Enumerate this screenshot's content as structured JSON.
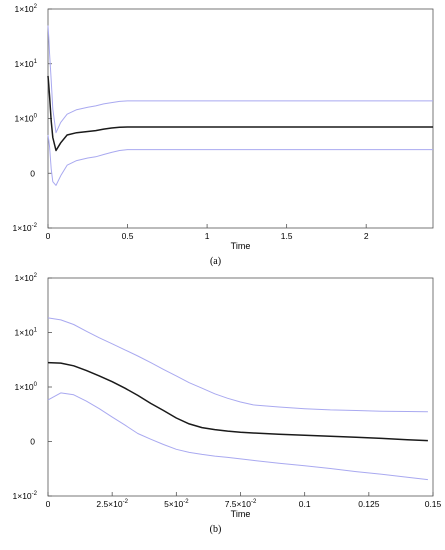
{
  "chart_data": [
    {
      "type": "line",
      "caption": "(a)",
      "xlabel": "Time",
      "ylabel": "",
      "x_ticks": [
        "0",
        "0.5",
        "1",
        "1.5",
        "2"
      ],
      "y_ticks": [
        {
          "base": "1×10",
          "exp": "2"
        },
        {
          "base": "1×10",
          "exp": "1"
        },
        {
          "base": "1×10",
          "exp": "0"
        },
        {
          "base": "0",
          "exp": ""
        },
        {
          "base": "1×10",
          "exp": "-2"
        }
      ],
      "y_scale": "log",
      "xlim": [
        0,
        2.42
      ],
      "grid": false,
      "series": [
        {
          "color": "#1a1a1a",
          "width": 1.5,
          "x": [
            0,
            0.005,
            0.01,
            0.02,
            0.03,
            0.05,
            0.08,
            0.12,
            0.18,
            0.25,
            0.3,
            0.35,
            0.4,
            0.45,
            0.5,
            0.6,
            1,
            1.5,
            2,
            2.42
          ],
          "y": [
            6,
            4,
            2.5,
            0.9,
            0.45,
            0.26,
            0.36,
            0.5,
            0.55,
            0.58,
            0.6,
            0.64,
            0.67,
            0.69,
            0.7,
            0.7,
            0.7,
            0.7,
            0.7,
            0.7
          ]
        },
        {
          "color": "#a9a9f0",
          "width": 1,
          "x": [
            0,
            0.005,
            0.01,
            0.02,
            0.03,
            0.05,
            0.08,
            0.12,
            0.18,
            0.25,
            0.3,
            0.35,
            0.4,
            0.45,
            0.5,
            0.6,
            1,
            1.5,
            2,
            2.42
          ],
          "y": [
            50,
            30,
            15,
            5,
            1.5,
            0.55,
            0.85,
            1.2,
            1.45,
            1.6,
            1.7,
            1.85,
            1.95,
            2.05,
            2.1,
            2.1,
            2.1,
            2.1,
            2.1,
            2.1
          ]
        },
        {
          "color": "#a9a9f0",
          "width": 1,
          "x": [
            0,
            0.005,
            0.01,
            0.02,
            0.03,
            0.05,
            0.08,
            0.12,
            0.18,
            0.25,
            0.3,
            0.35,
            0.4,
            0.45,
            0.5,
            0.6,
            1,
            1.5,
            2,
            2.42
          ],
          "y": [
            0.5,
            0.4,
            0.3,
            0.12,
            0.07,
            0.06,
            0.09,
            0.14,
            0.17,
            0.19,
            0.2,
            0.22,
            0.24,
            0.26,
            0.27,
            0.27,
            0.27,
            0.27,
            0.27,
            0.27
          ]
        }
      ]
    },
    {
      "type": "line",
      "caption": "(b)",
      "xlabel": "Time",
      "ylabel": "",
      "x_ticks": [
        {
          "base": "0",
          "exp": ""
        },
        {
          "base": "2.5×10",
          "exp": "-2"
        },
        {
          "base": "5×10",
          "exp": "-2"
        },
        {
          "base": "7.5×10",
          "exp": "-2"
        },
        {
          "base": "0.1",
          "exp": ""
        },
        {
          "base": "0.125",
          "exp": ""
        },
        {
          "base": "0.15",
          "exp": ""
        }
      ],
      "y_ticks": [
        {
          "base": "1×10",
          "exp": "2"
        },
        {
          "base": "1×10",
          "exp": "1"
        },
        {
          "base": "1×10",
          "exp": "0"
        },
        {
          "base": "0",
          "exp": ""
        },
        {
          "base": "1×10",
          "exp": "-2"
        }
      ],
      "y_scale": "log",
      "xlim": [
        0,
        0.15
      ],
      "grid": false,
      "series": [
        {
          "color": "#1a1a1a",
          "width": 1.5,
          "x": [
            0,
            0.005,
            0.01,
            0.015,
            0.02,
            0.025,
            0.03,
            0.035,
            0.04,
            0.045,
            0.05,
            0.055,
            0.06,
            0.065,
            0.07,
            0.075,
            0.08,
            0.09,
            0.1,
            0.11,
            0.12,
            0.13,
            0.14,
            0.148
          ],
          "y": [
            2.8,
            2.75,
            2.45,
            2.0,
            1.6,
            1.25,
            0.95,
            0.7,
            0.5,
            0.37,
            0.27,
            0.21,
            0.18,
            0.165,
            0.155,
            0.148,
            0.143,
            0.136,
            0.13,
            0.125,
            0.12,
            0.114,
            0.108,
            0.104
          ]
        },
        {
          "color": "#a9a9f0",
          "width": 1,
          "x": [
            0,
            0.005,
            0.01,
            0.015,
            0.02,
            0.025,
            0.03,
            0.035,
            0.04,
            0.045,
            0.05,
            0.055,
            0.06,
            0.065,
            0.07,
            0.075,
            0.08,
            0.09,
            0.1,
            0.11,
            0.12,
            0.13,
            0.14,
            0.148
          ],
          "y": [
            18.5,
            17,
            14,
            10.5,
            8,
            6.2,
            4.8,
            3.7,
            2.8,
            2.1,
            1.6,
            1.2,
            0.95,
            0.75,
            0.62,
            0.53,
            0.47,
            0.43,
            0.4,
            0.38,
            0.37,
            0.36,
            0.355,
            0.35
          ]
        },
        {
          "color": "#a9a9f0",
          "width": 1,
          "x": [
            0,
            0.005,
            0.01,
            0.015,
            0.02,
            0.025,
            0.03,
            0.035,
            0.04,
            0.045,
            0.05,
            0.055,
            0.06,
            0.065,
            0.07,
            0.075,
            0.08,
            0.09,
            0.1,
            0.11,
            0.12,
            0.13,
            0.14,
            0.148
          ],
          "y": [
            0.58,
            0.78,
            0.72,
            0.55,
            0.4,
            0.28,
            0.2,
            0.14,
            0.11,
            0.088,
            0.072,
            0.063,
            0.058,
            0.054,
            0.051,
            0.048,
            0.045,
            0.04,
            0.036,
            0.032,
            0.028,
            0.025,
            0.022,
            0.02
          ]
        }
      ]
    }
  ]
}
